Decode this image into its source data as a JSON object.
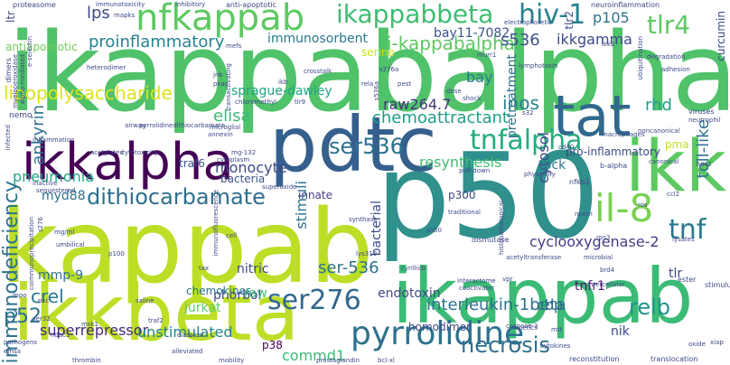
{
  "words": [
    "ikappabalpha",
    "p50",
    "kappab",
    "pdtc",
    "ikkbeta",
    "ikappab",
    "ikk",
    "nfkappab",
    "ikkalpha",
    "tat",
    "il-8",
    "pyrrolidine",
    "ikappabbeta",
    "hiv-1",
    "tnfalpha",
    "ser276",
    "dithiocarbamate",
    "tnf",
    "tlr4",
    "i-kappabalpha",
    "ser536",
    "relb",
    "necrosis",
    "immunodeficiency",
    "lipopolysaccharide",
    "proinflammatory",
    "p52",
    "crel",
    "ikkgamma",
    "s536",
    "chemoattractant",
    "inos",
    "bay",
    "elisa",
    "rhd",
    "cytosol",
    "resynthesis",
    "interleukin-1beta",
    "cyclooxygenase-2",
    "monocyte",
    "raw264.7",
    "sprague-dawley",
    "ankyrin",
    "immunosorbent",
    "bay11-7082",
    "p105",
    "lps",
    "toll-like",
    "ser-536",
    "pneumonia",
    "myd88",
    "mmp-9",
    "tnfr1",
    "superrepressor",
    "commd1",
    "unstimulated",
    "endotoxin",
    "nitric",
    "phorbol",
    "jurkat",
    "chemokines",
    "cbp",
    "serine",
    "antiapoptotic",
    "pretreatment",
    "stimuli",
    "bacterial",
    "curcumin",
    "homodimer",
    "nik",
    "raw",
    "tpck",
    "pro-inflammatory",
    "pma",
    "traf6",
    "bacteria",
    "tlr",
    "innate",
    "p300",
    "tlr2",
    "ltr",
    "p38",
    "proteasome",
    "immunotoxicity",
    "inhibitory",
    "anti-apoptotic",
    "neuroinflammation",
    "electrophoretic",
    "ikk2",
    "degradation",
    "adhesion",
    "ubiquitination",
    "viruses",
    "neutrophil",
    "host",
    "stimulus",
    "ester",
    "xiap",
    "oxide",
    "translocation",
    "reconstitution",
    "kinetics",
    "caspase-3",
    "cytokines",
    "mtt",
    "interactome",
    "coactivator",
    "dismutase",
    "vpr",
    "acetyltransferase",
    "microbial",
    "brd4",
    "nfkb1",
    "b-alpha",
    "canonical",
    "noncanonical",
    "macrophages",
    "mapks",
    "mefs",
    "jnk",
    "pkac",
    "transactivating",
    "ikb",
    "crosstalk",
    "s276a",
    "s536a",
    "murr1",
    "shock",
    "dose",
    "airway",
    "pyrrolidinedithiocarbamate",
    "microglial",
    "annexin",
    "inflammation",
    "acetylated",
    "cytotoxicity",
    "mg-132",
    "cytoplasm",
    "sequestered",
    "superoxide",
    "inactive",
    "immunofluorescence",
    "traditional",
    "lys310",
    "cyrillicb",
    "sn50",
    "pull-down",
    "histopathological",
    "heterodimer",
    "myeloperoxidase",
    "alpha-mediated",
    "e-selectin",
    "s276",
    "dimers",
    "nemo",
    "infected",
    "coimmunoprecipitation",
    "mg/ml",
    "umbilical",
    "tax",
    "mpo",
    "pkc",
    "ser32",
    "msk1",
    "traf2",
    "saline",
    "hdac1",
    "pathogens",
    "emsa",
    "thrombin",
    "classical",
    "alleviated",
    "mobility",
    "prostaglandin",
    "bcl-xl",
    "intercellular",
    "lymphotoxin",
    "cd40",
    "ros",
    "ccl2",
    "lysates",
    "rps3",
    "neem",
    "cell",
    "p100",
    "s32",
    "synthase",
    "physically",
    "chloromethyl",
    "tlr9",
    "rela",
    "pest",
    "synthetic",
    "ccl5",
    "nf-kappab",
    "abin",
    "amp",
    "inducibility",
    "release",
    "lipoxin",
    "immunomodulatory",
    "microglia",
    "cysteine",
    "peptide"
  ]
}
